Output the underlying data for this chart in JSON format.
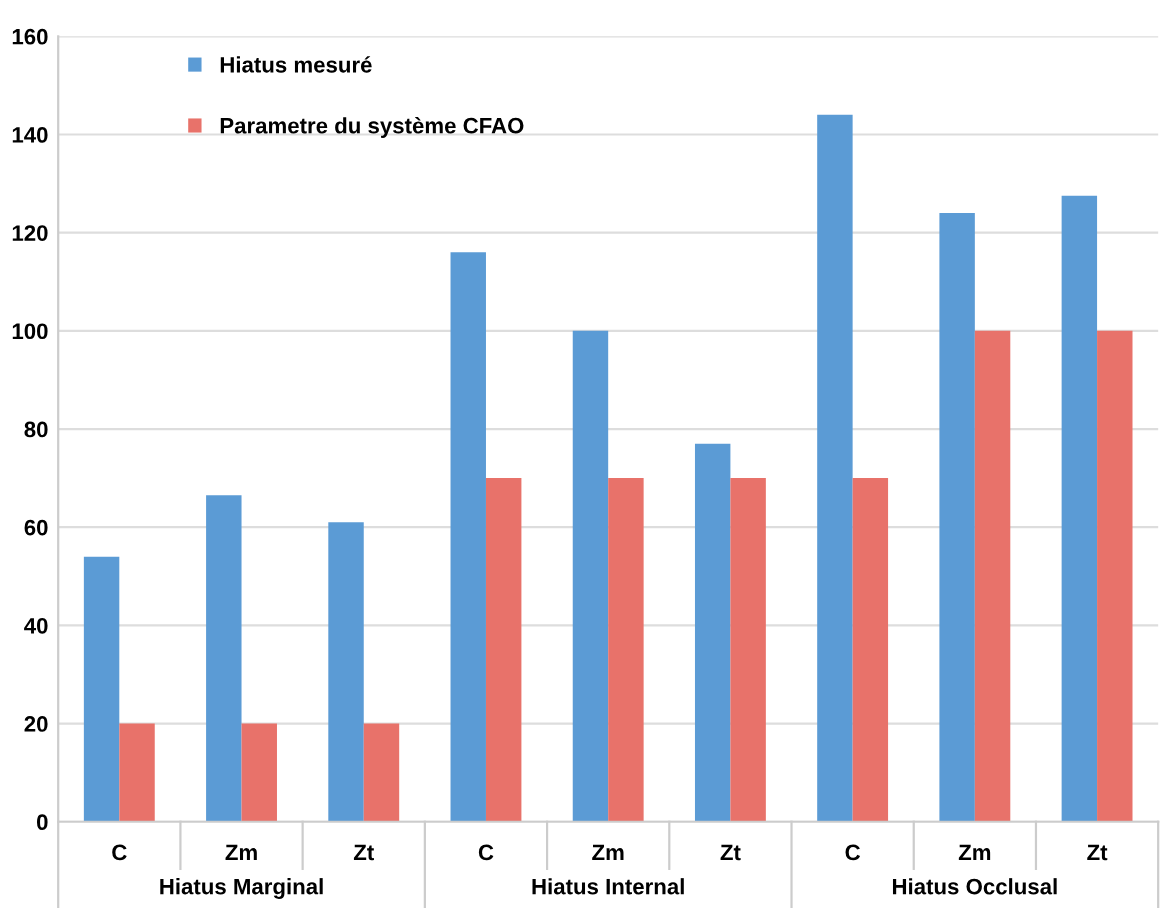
{
  "chart_data": {
    "type": "bar",
    "categories": [
      "C",
      "Zm",
      "Zt",
      "C",
      "Zm",
      "Zt",
      "C",
      "Zm",
      "Zt"
    ],
    "series": [
      {
        "name": "Hiatus mesuré",
        "color": "#5b9bd5",
        "values": [
          54,
          66.5,
          61,
          116,
          100,
          77,
          144,
          124,
          127.5
        ]
      },
      {
        "name": "Parametre du système CFAO",
        "color": "#e8726a",
        "values": [
          20,
          20,
          20,
          70,
          70,
          70,
          70,
          100,
          100
        ]
      }
    ],
    "annotations": [
      "Hiatus Marginal",
      "Hiatus Internal",
      "Hiatus Occlusal"
    ],
    "ylim": [
      0,
      160
    ],
    "yticks": [
      0,
      20,
      40,
      60,
      80,
      100,
      120,
      140,
      160
    ],
    "grid": "y",
    "legend": "top left"
  }
}
